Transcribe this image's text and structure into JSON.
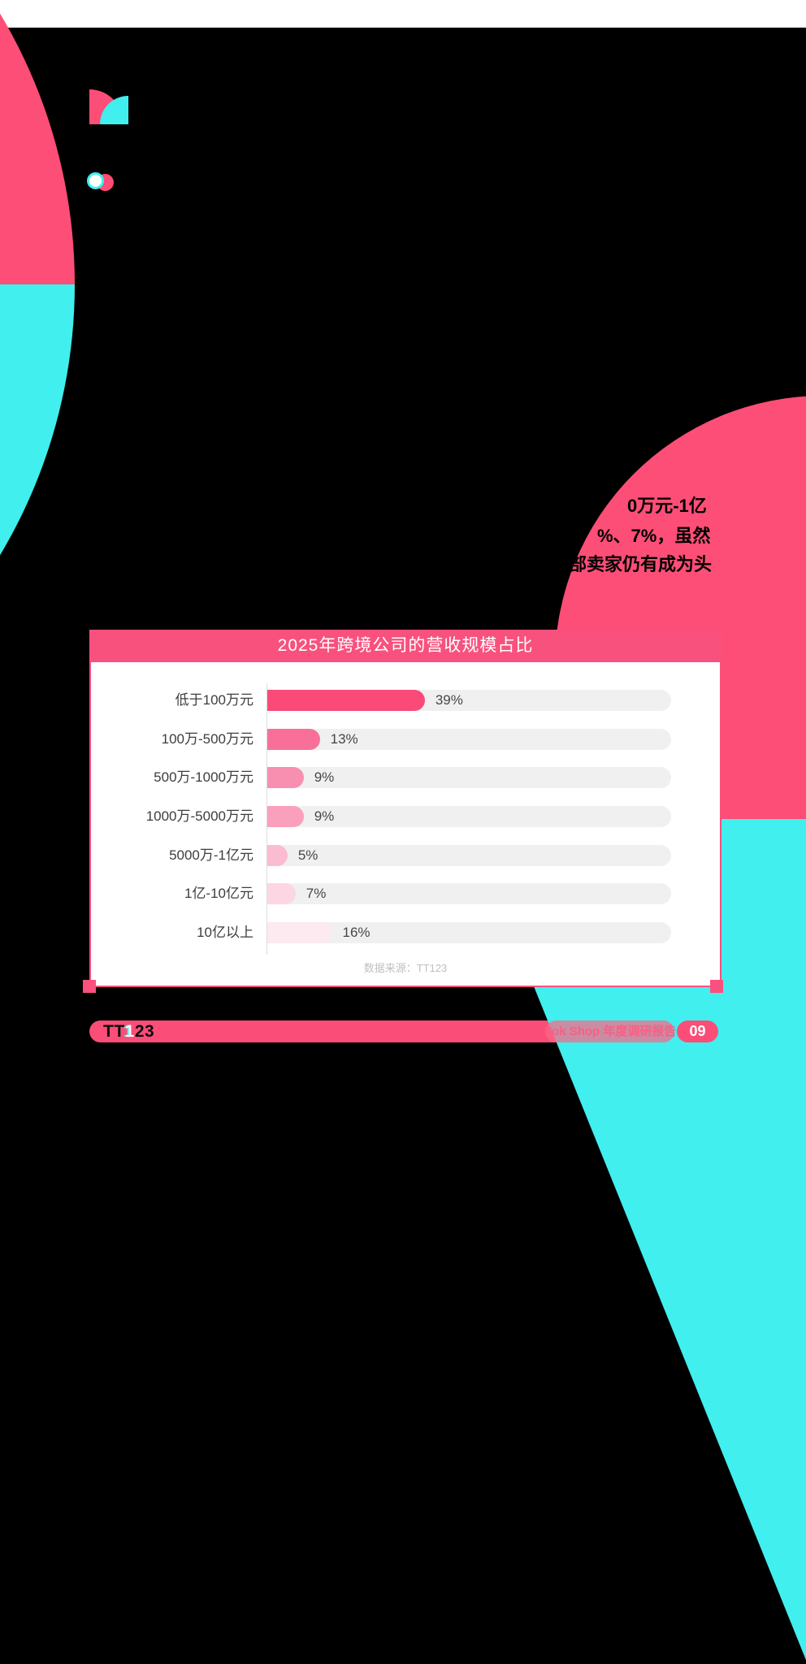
{
  "colors": {
    "background": "#000000",
    "brand_pink": "#FC4E76",
    "brand_cyan": "#40EFEE",
    "card_accent_pink": "#F8517E",
    "footer_pink": "#FA4E78",
    "track_gray": "#F0F0F0"
  },
  "hero_text": {
    "line1": "0万元-1亿",
    "line2": "%、7%，虽然",
    "line3": "部卖家仍有成为头"
  },
  "chart": {
    "title": "2025年跨境公司的营收规模占比",
    "source": "数据来源：TT123"
  },
  "chart_data": {
    "type": "bar",
    "orientation": "horizontal",
    "title": "2025年跨境公司的营收规模占比",
    "categories": [
      "低于100万元",
      "100万-500万元",
      "500万-1000万元",
      "1000万-5000万元",
      "5000万-1亿元",
      "1亿-10亿元",
      "10亿以上"
    ],
    "values": [
      39,
      13,
      9,
      9,
      5,
      7,
      16
    ],
    "unit": "%",
    "xlim": [
      0,
      100
    ],
    "bar_colors": [
      "#FA4A78",
      "#F8709A",
      "#F88FB0",
      "#FA9FBC",
      "#FBBCD2",
      "#FCD6E2",
      "#FDE9F0"
    ],
    "track_color": "#F0F0F0",
    "grid": false,
    "legend": false,
    "source": "数据来源：TT123"
  },
  "footer": {
    "logo_tt": "TT",
    "logo_one": "1",
    "logo_23": "23",
    "report_label": "Tok Shop 年度调研报告",
    "page_number": "09"
  }
}
